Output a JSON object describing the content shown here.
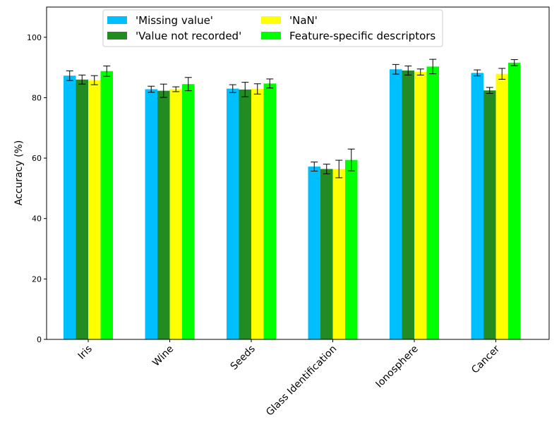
{
  "chart_data": {
    "type": "bar",
    "title": "",
    "xlabel": "",
    "ylabel": "Accuracy (%)",
    "ylim": [
      0,
      110
    ],
    "yticks": [
      0,
      20,
      40,
      60,
      80,
      100
    ],
    "grid": false,
    "legend_position": "top",
    "categories": [
      "Iris",
      "Wine",
      "Seeds",
      "Glass Identification",
      "Ionosphere",
      "Cancer"
    ],
    "series": [
      {
        "name": "'Missing value'",
        "color": "#00bfff",
        "values": [
          87.3,
          82.8,
          83.0,
          57.2,
          89.4,
          88.2
        ],
        "errors": [
          1.6,
          1.0,
          1.3,
          1.5,
          1.6,
          1.0
        ]
      },
      {
        "name": "'Value not recorded'",
        "color": "#228b22",
        "values": [
          86.0,
          82.3,
          82.7,
          56.4,
          89.0,
          82.4
        ],
        "errors": [
          1.5,
          2.2,
          2.4,
          1.6,
          1.5,
          1.0
        ]
      },
      {
        "name": "'NaN'",
        "color": "#ffff00",
        "values": [
          85.8,
          82.8,
          82.9,
          56.4,
          88.5,
          87.9
        ],
        "errors": [
          1.5,
          0.8,
          1.7,
          2.9,
          1.0,
          1.8
        ]
      },
      {
        "name": "Feature-specific descriptors",
        "color": "#00ff00",
        "values": [
          88.8,
          84.5,
          84.7,
          59.4,
          90.3,
          91.6
        ],
        "errors": [
          1.7,
          2.2,
          1.5,
          3.6,
          2.4,
          1.0
        ]
      }
    ]
  }
}
